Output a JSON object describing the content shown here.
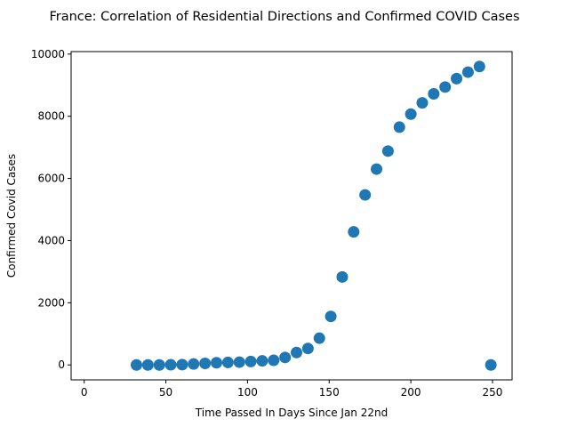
{
  "chart_data": {
    "type": "scatter",
    "title": "France: Correlation of Residential Directions and Confirmed COVID Cases",
    "xlabel": "Time Passed In Days Since Jan 22nd",
    "ylabel": "Confirmed Covid Cases",
    "xlim": [
      -8,
      262
    ],
    "ylim": [
      -480,
      10080
    ],
    "xticks": [
      0,
      50,
      100,
      150,
      200,
      250
    ],
    "yticks": [
      0,
      2000,
      4000,
      6000,
      8000,
      10000
    ],
    "grid": false,
    "marker_color": "#1f77b4",
    "points": [
      {
        "x": 32,
        "y": 0
      },
      {
        "x": 39,
        "y": 0
      },
      {
        "x": 46,
        "y": 0
      },
      {
        "x": 53,
        "y": 5
      },
      {
        "x": 60,
        "y": 10
      },
      {
        "x": 67,
        "y": 30
      },
      {
        "x": 74,
        "y": 50
      },
      {
        "x": 81,
        "y": 70
      },
      {
        "x": 88,
        "y": 80
      },
      {
        "x": 95,
        "y": 90
      },
      {
        "x": 102,
        "y": 110
      },
      {
        "x": 109,
        "y": 130
      },
      {
        "x": 116,
        "y": 150
      },
      {
        "x": 123,
        "y": 240
      },
      {
        "x": 130,
        "y": 400
      },
      {
        "x": 137,
        "y": 530
      },
      {
        "x": 144,
        "y": 860
      },
      {
        "x": 151,
        "y": 1560
      },
      {
        "x": 158,
        "y": 2830
      },
      {
        "x": 165,
        "y": 4280
      },
      {
        "x": 172,
        "y": 5470
      },
      {
        "x": 179,
        "y": 6300
      },
      {
        "x": 186,
        "y": 6880
      },
      {
        "x": 193,
        "y": 7650
      },
      {
        "x": 200,
        "y": 8070
      },
      {
        "x": 207,
        "y": 8430
      },
      {
        "x": 214,
        "y": 8720
      },
      {
        "x": 221,
        "y": 8940
      },
      {
        "x": 228,
        "y": 9210
      },
      {
        "x": 235,
        "y": 9420
      },
      {
        "x": 242,
        "y": 9600
      },
      {
        "x": 249,
        "y": 0
      }
    ]
  }
}
